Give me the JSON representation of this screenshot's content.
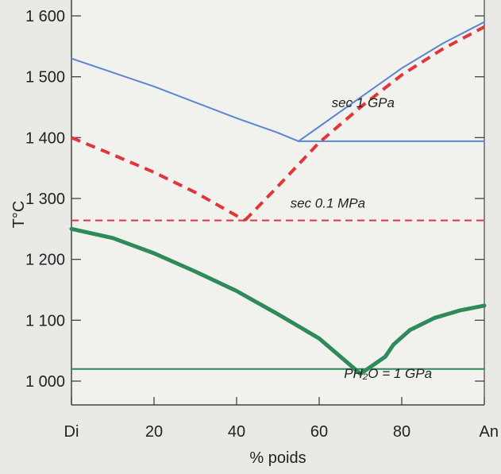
{
  "chart_data": {
    "type": "line",
    "title": "",
    "xlabel": "% poids",
    "ylabel": "T°C",
    "xlim": [
      0,
      100
    ],
    "ylim": [
      960,
      1600
    ],
    "x_ticks": [
      {
        "value": 0,
        "label": "Di"
      },
      {
        "value": 20,
        "label": "20"
      },
      {
        "value": 40,
        "label": "40"
      },
      {
        "value": 60,
        "label": "60"
      },
      {
        "value": 80,
        "label": "80"
      },
      {
        "value": 100,
        "label": "An"
      }
    ],
    "y_ticks": [
      {
        "value": 1000,
        "label": "1 000"
      },
      {
        "value": 1100,
        "label": "1 100"
      },
      {
        "value": 1200,
        "label": "1 200"
      },
      {
        "value": 1300,
        "label": "1 300"
      },
      {
        "value": 1400,
        "label": "1 400"
      },
      {
        "value": 1500,
        "label": "1 500"
      },
      {
        "value": 1600,
        "label": "1 600"
      }
    ],
    "grid": false,
    "series": [
      {
        "name": "sec 1 GPa",
        "color": "#5b86cf",
        "style": "solid",
        "segments": [
          {
            "points": [
              [
                0,
                1530
              ],
              [
                10,
                1507
              ],
              [
                20,
                1484
              ],
              [
                30,
                1458
              ],
              [
                40,
                1432
              ],
              [
                50,
                1408
              ],
              [
                55,
                1394
              ]
            ]
          },
          {
            "points": [
              [
                55,
                1394
              ],
              [
                60,
                1418
              ],
              [
                70,
                1466
              ],
              [
                80,
                1514
              ],
              [
                90,
                1555
              ],
              [
                100,
                1590
              ]
            ]
          },
          {
            "points": [
              [
                55,
                1394
              ],
              [
                100,
                1394
              ]
            ]
          }
        ]
      },
      {
        "name": "sec 0.1 MPa",
        "color": "#e0363a",
        "style": "dashed",
        "segments": [
          {
            "points": [
              [
                0,
                1400
              ],
              [
                10,
                1372
              ],
              [
                20,
                1343
              ],
              [
                30,
                1310
              ],
              [
                42,
                1264
              ]
            ]
          },
          {
            "points": [
              [
                42,
                1264
              ],
              [
                50,
                1320
              ],
              [
                60,
                1392
              ],
              [
                70,
                1450
              ],
              [
                80,
                1503
              ],
              [
                90,
                1546
              ],
              [
                100,
                1582
              ]
            ]
          },
          {
            "points": [
              [
                0,
                1264
              ],
              [
                100,
                1264
              ]
            ]
          }
        ]
      },
      {
        "name": "PH₂O = 1 GPa",
        "color": "#2f8a5a",
        "style": "solid",
        "segments": [
          {
            "points": [
              [
                0,
                1250
              ],
              [
                10,
                1235
              ],
              [
                20,
                1210
              ],
              [
                30,
                1180
              ],
              [
                40,
                1148
              ],
              [
                50,
                1110
              ],
              [
                60,
                1070
              ],
              [
                70,
                1012
              ],
              [
                76,
                1040
              ]
            ]
          },
          {
            "points": [
              [
                76,
                1040
              ],
              [
                78,
                1060
              ],
              [
                82,
                1084
              ],
              [
                88,
                1104
              ],
              [
                94,
                1116
              ],
              [
                100,
                1124
              ]
            ]
          },
          {
            "points": [
              [
                0,
                1020
              ],
              [
                100,
                1020
              ]
            ]
          }
        ]
      }
    ],
    "annotations": [
      {
        "text": "sec 1 GPa",
        "x": 63,
        "y": 1450
      },
      {
        "text": "sec 0.1 MPa",
        "x": 53,
        "y": 1285
      },
      {
        "text": "PH₂O = 1 GPa",
        "x": 66,
        "y": 1005
      }
    ]
  }
}
